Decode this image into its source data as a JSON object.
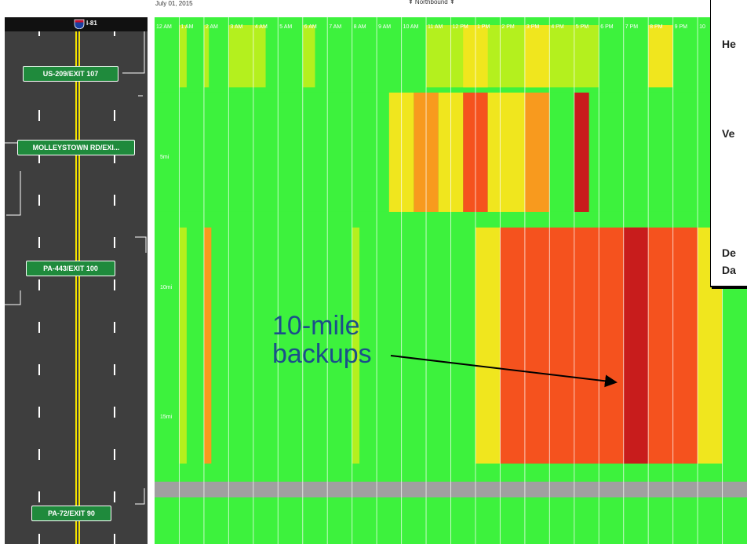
{
  "header": {
    "date": "July 01, 2015",
    "direction": "⇞ Northbound ⇞"
  },
  "highway": {
    "route": "I-81",
    "exits": [
      "US-209/EXIT 107",
      "MOLLEYSTOWN RD/EXI...",
      "PA-443/EXIT 100",
      "PA-72/EXIT 90"
    ]
  },
  "chart_data": {
    "type": "heatmap",
    "x_ticks": [
      "12 AM",
      "1 AM",
      "2 AM",
      "3 AM",
      "4 AM",
      "5 AM",
      "6 AM",
      "7 AM",
      "8 AM",
      "9 AM",
      "10 AM",
      "11 AM",
      "12 PM",
      "1 PM",
      "2 PM",
      "3 PM",
      "4 PM",
      "5 PM",
      "6 PM",
      "7 PM",
      "8 PM",
      "9 PM",
      "10"
    ],
    "y_ticks": [
      "5mi",
      "10mi",
      "15mi"
    ],
    "y_tick_values": [
      5,
      10,
      15
    ],
    "x_range_hours": [
      0,
      24
    ],
    "y_range_miles": [
      0,
      20
    ],
    "segments": [
      {
        "from_mi": 0.0,
        "to_mi": 2.4,
        "bands": [
          [
            1.0,
            1.3,
            "lime"
          ],
          [
            2.0,
            2.2,
            "lime"
          ],
          [
            3.0,
            4.5,
            "lime"
          ],
          [
            6.0,
            6.5,
            "lime"
          ],
          [
            11.0,
            18.0,
            "lime"
          ],
          [
            12.5,
            13.5,
            "yellow"
          ],
          [
            15.0,
            16.0,
            "yellow"
          ],
          [
            20.0,
            21.0,
            "yellow"
          ]
        ]
      },
      {
        "from_mi": 2.6,
        "to_mi": 7.2,
        "bands": [
          [
            0.0,
            24.0,
            "green"
          ],
          [
            9.5,
            10.5,
            "yellow"
          ],
          [
            10.5,
            11.5,
            "orange"
          ],
          [
            11.5,
            12.5,
            "yellow"
          ],
          [
            12.5,
            13.5,
            "red-orange"
          ],
          [
            13.5,
            15.0,
            "yellow"
          ],
          [
            15.0,
            16.0,
            "orange"
          ],
          [
            17.0,
            17.6,
            "dark-red"
          ]
        ]
      },
      {
        "from_mi": 7.8,
        "to_mi": 16.9,
        "bands": [
          [
            1.0,
            1.3,
            "lime"
          ],
          [
            2.0,
            2.3,
            "orange"
          ],
          [
            8.0,
            8.3,
            "lime"
          ],
          [
            13.0,
            14.0,
            "yellow"
          ],
          [
            14.0,
            22.0,
            "red-orange"
          ],
          [
            19.0,
            20.0,
            "dark-red"
          ],
          [
            22.0,
            23.0,
            "yellow"
          ]
        ]
      }
    ],
    "closed_band_mi": [
      17.6,
      18.2
    ],
    "colors": {
      "green": "#3df23d",
      "lime": "#b4f01e",
      "yellow": "#f0e61e",
      "orange": "#f89a1e",
      "red-orange": "#f5521e",
      "dark-red": "#c81c1c",
      "closed": "#a0a0a0"
    }
  },
  "popup": {
    "lines": [
      "He",
      "Ve",
      "De",
      "Da"
    ]
  },
  "annotation": {
    "line1": "10-mile",
    "line2": "backups"
  },
  "colors": {
    "road": "#3e3e3e",
    "sign": "#1f8a3c",
    "annotation": "#1b4f8a"
  }
}
